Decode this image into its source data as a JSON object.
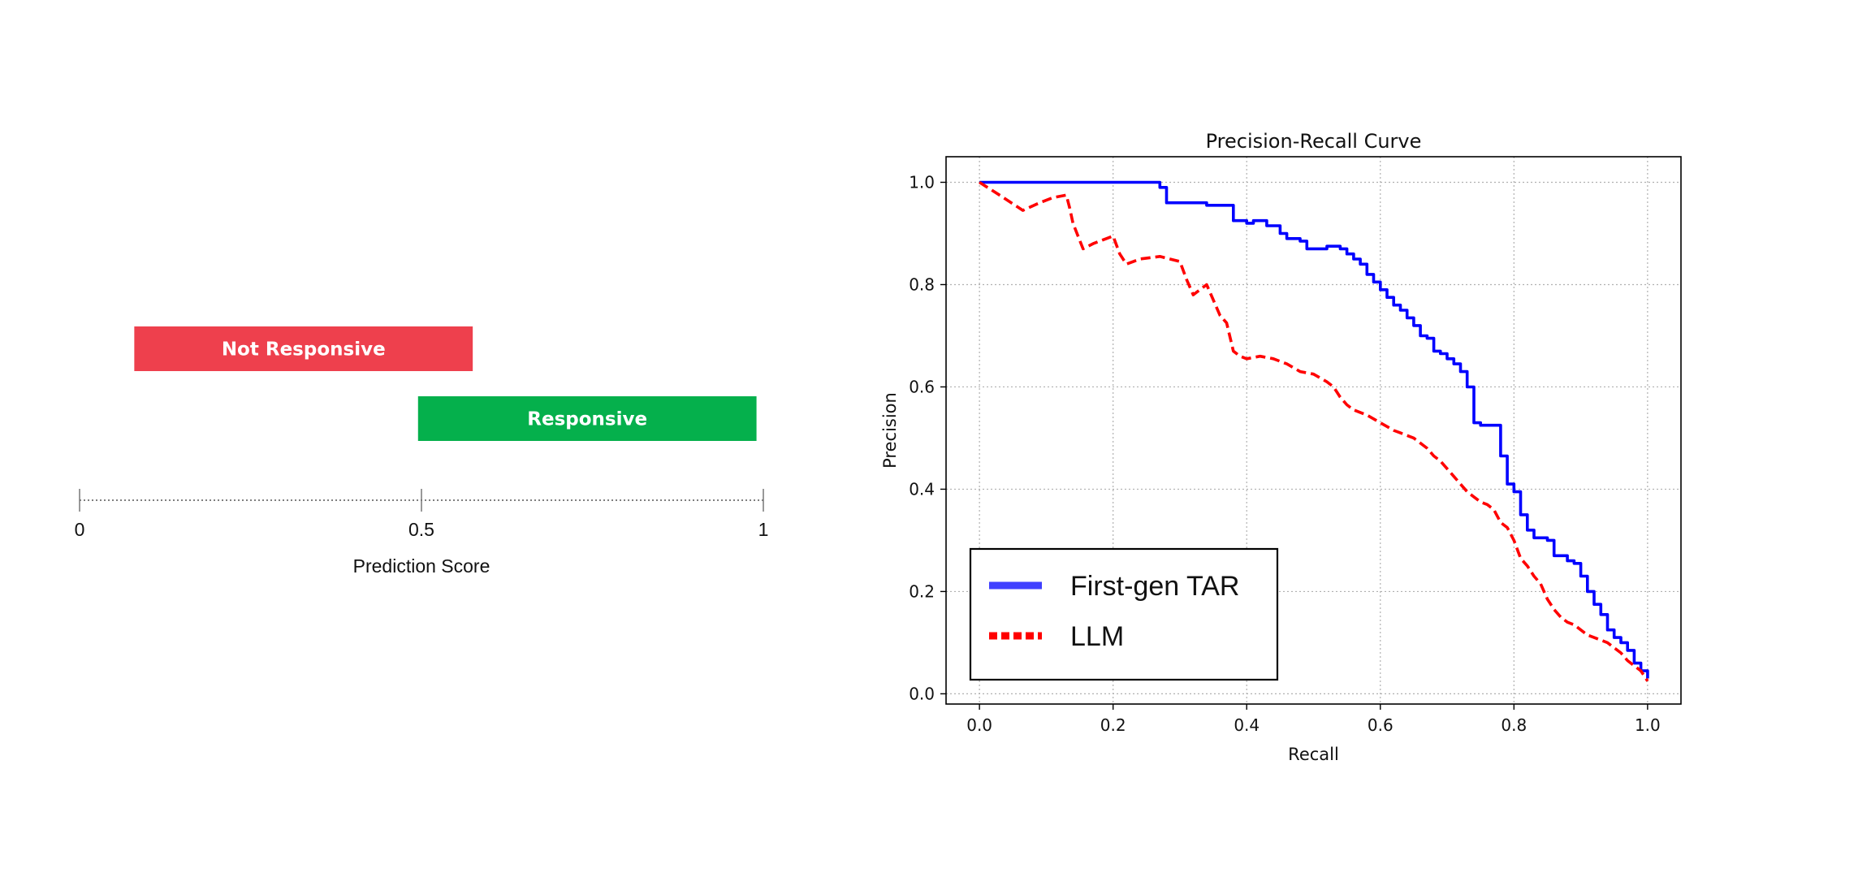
{
  "score_panel": {
    "bars": [
      {
        "label": "Not Responsive",
        "start": 0.08,
        "end": 0.575,
        "color": "#ee404d"
      },
      {
        "label": "Responsive",
        "start": 0.495,
        "end": 0.99,
        "color": "#05b04c"
      }
    ],
    "ticks": [
      {
        "value": 0,
        "label": "0"
      },
      {
        "value": 0.5,
        "label": "0.5"
      },
      {
        "value": 1,
        "label": "1"
      }
    ],
    "axis_label": "Prediction Score"
  },
  "chart_data": {
    "type": "line",
    "title": "Precision-Recall Curve",
    "xlabel": "Recall",
    "ylabel": "Precision",
    "xlim": [
      -0.05,
      1.05
    ],
    "ylim": [
      -0.02,
      1.05
    ],
    "xticks": [
      0.0,
      0.2,
      0.4,
      0.6,
      0.8,
      1.0
    ],
    "xtick_labels": [
      "0.0",
      "0.2",
      "0.4",
      "0.6",
      "0.8",
      "1.0"
    ],
    "yticks": [
      0.0,
      0.2,
      0.4,
      0.6,
      0.8,
      1.0
    ],
    "ytick_labels": [
      "0.0",
      "0.2",
      "0.4",
      "0.6",
      "0.8",
      "1.0"
    ],
    "grid": true,
    "legend_position": "lower-left",
    "series": [
      {
        "name": "First-gen TAR",
        "color": "#0000ff",
        "style": "solid",
        "x": [
          0.0,
          0.26,
          0.27,
          0.28,
          0.33,
          0.34,
          0.37,
          0.38,
          0.4,
          0.41,
          0.43,
          0.44,
          0.45,
          0.46,
          0.48,
          0.49,
          0.5,
          0.52,
          0.54,
          0.55,
          0.56,
          0.57,
          0.58,
          0.59,
          0.6,
          0.61,
          0.62,
          0.63,
          0.64,
          0.65,
          0.66,
          0.67,
          0.68,
          0.69,
          0.7,
          0.71,
          0.72,
          0.73,
          0.74,
          0.75,
          0.76,
          0.78,
          0.79,
          0.8,
          0.81,
          0.82,
          0.83,
          0.85,
          0.86,
          0.88,
          0.89,
          0.9,
          0.91,
          0.92,
          0.93,
          0.94,
          0.95,
          0.96,
          0.97,
          0.98,
          0.99,
          1.0
        ],
        "y": [
          1.0,
          1.0,
          0.99,
          0.96,
          0.96,
          0.955,
          0.955,
          0.925,
          0.92,
          0.925,
          0.915,
          0.915,
          0.9,
          0.89,
          0.885,
          0.87,
          0.87,
          0.875,
          0.87,
          0.86,
          0.85,
          0.84,
          0.82,
          0.805,
          0.79,
          0.775,
          0.76,
          0.75,
          0.735,
          0.72,
          0.7,
          0.695,
          0.67,
          0.665,
          0.655,
          0.645,
          0.63,
          0.6,
          0.53,
          0.525,
          0.525,
          0.465,
          0.41,
          0.395,
          0.35,
          0.32,
          0.305,
          0.3,
          0.27,
          0.26,
          0.255,
          0.23,
          0.2,
          0.175,
          0.155,
          0.125,
          0.11,
          0.1,
          0.085,
          0.06,
          0.045,
          0.03
        ]
      },
      {
        "name": "LLM",
        "color": "#ff0000",
        "style": "dashed",
        "x": [
          0.0,
          0.03,
          0.065,
          0.09,
          0.11,
          0.13,
          0.135,
          0.14,
          0.155,
          0.17,
          0.19,
          0.2,
          0.21,
          0.22,
          0.24,
          0.27,
          0.3,
          0.31,
          0.32,
          0.34,
          0.35,
          0.36,
          0.37,
          0.38,
          0.39,
          0.4,
          0.42,
          0.44,
          0.46,
          0.48,
          0.5,
          0.52,
          0.53,
          0.54,
          0.55,
          0.56,
          0.58,
          0.6,
          0.62,
          0.63,
          0.65,
          0.66,
          0.67,
          0.68,
          0.69,
          0.7,
          0.71,
          0.72,
          0.73,
          0.74,
          0.75,
          0.76,
          0.77,
          0.78,
          0.79,
          0.8,
          0.81,
          0.82,
          0.83,
          0.84,
          0.85,
          0.86,
          0.87,
          0.88,
          0.89,
          0.9,
          0.91,
          0.92,
          0.93,
          0.94,
          0.95,
          0.96,
          0.97,
          0.98,
          0.99,
          1.0
        ],
        "y": [
          1.0,
          0.975,
          0.945,
          0.96,
          0.97,
          0.975,
          0.95,
          0.92,
          0.87,
          0.88,
          0.89,
          0.895,
          0.86,
          0.84,
          0.85,
          0.855,
          0.845,
          0.81,
          0.78,
          0.8,
          0.77,
          0.74,
          0.725,
          0.67,
          0.66,
          0.655,
          0.66,
          0.655,
          0.645,
          0.63,
          0.625,
          0.61,
          0.6,
          0.58,
          0.565,
          0.555,
          0.545,
          0.53,
          0.515,
          0.51,
          0.5,
          0.49,
          0.48,
          0.465,
          0.455,
          0.44,
          0.425,
          0.41,
          0.395,
          0.385,
          0.375,
          0.37,
          0.36,
          0.335,
          0.325,
          0.3,
          0.265,
          0.25,
          0.23,
          0.215,
          0.185,
          0.165,
          0.15,
          0.14,
          0.135,
          0.125,
          0.115,
          0.11,
          0.105,
          0.1,
          0.09,
          0.08,
          0.065,
          0.055,
          0.045,
          0.025
        ]
      }
    ]
  }
}
